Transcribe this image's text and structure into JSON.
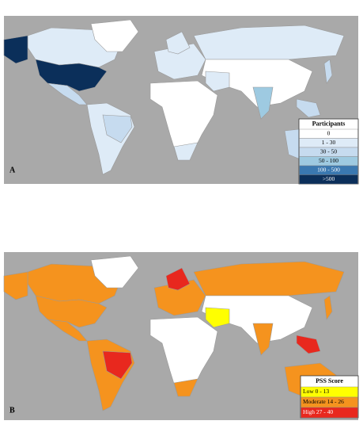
{
  "panels": [
    {
      "label": "A",
      "legend": {
        "title": "Participants",
        "items": [
          {
            "label": "0",
            "color": "#ffffff"
          },
          {
            "label": "1 - 30",
            "color": "#deebf7"
          },
          {
            "label": "30 - 50",
            "color": "#c6dbef"
          },
          {
            "label": "50 - 100",
            "color": "#9ecae1"
          },
          {
            "label": "100 - 500",
            "color": "#3a78b0"
          },
          {
            "label": ">500",
            "color": "#0b2f5a"
          }
        ]
      }
    },
    {
      "label": "B",
      "legend": {
        "title": "PSS Score",
        "items": [
          {
            "label": "Low 0 - 13",
            "color": "#ffff00"
          },
          {
            "label": "Moderate 14 - 26",
            "color": "#f5931e"
          },
          {
            "label": "High 27 - 40",
            "color": "#e8281e"
          }
        ]
      }
    }
  ]
}
